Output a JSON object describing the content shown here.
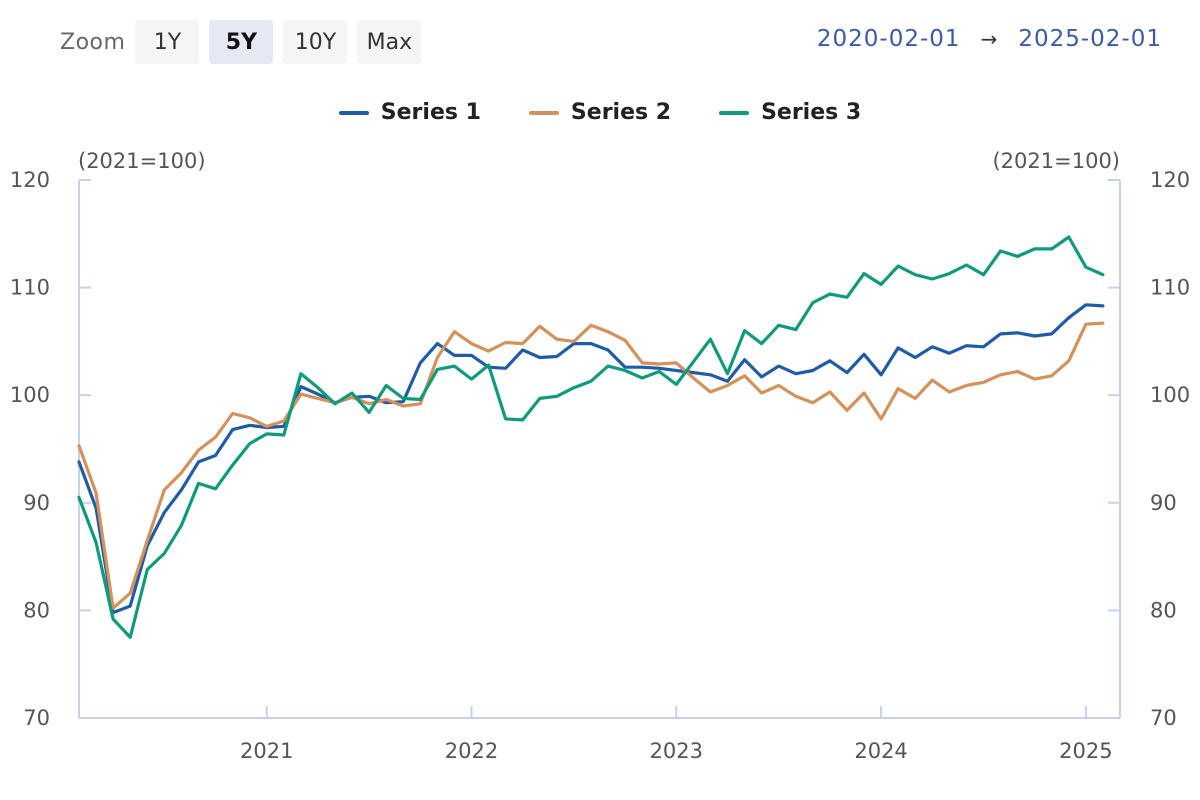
{
  "zoom": {
    "label": "Zoom",
    "buttons": [
      {
        "label": "1Y",
        "active": false
      },
      {
        "label": "5Y",
        "active": true
      },
      {
        "label": "10Y",
        "active": false
      },
      {
        "label": "Max",
        "active": false
      }
    ]
  },
  "range": {
    "from": "2020-02-01",
    "arrow": "→",
    "to": "2025-02-01"
  },
  "colors": {
    "series1": "#1f5ca8",
    "series2": "#d4915a",
    "series3": "#0f9a7c",
    "axis": "#c8d0ea"
  },
  "chart_data": {
    "type": "line",
    "x_start": "2020-02",
    "x_end": "2025-03",
    "frequency": "monthly",
    "y_unit_left": "(2021=100)",
    "y_unit_right": "(2021=100)",
    "ylim": [
      70,
      120
    ],
    "yticks": [
      "70",
      "80",
      "90",
      "100",
      "110",
      "120"
    ],
    "xticks": [
      "2021",
      "2022",
      "2023",
      "2024",
      "2025"
    ],
    "grid": false,
    "legend_position": "top-center",
    "series": [
      {
        "name": "Series 1",
        "color": "#1f5ca8",
        "values": [
          93.8,
          89.5,
          79.8,
          80.4,
          86,
          89.1,
          91.2,
          93.8,
          94.4,
          96.8,
          97.2,
          97,
          97.1,
          100.8,
          100.1,
          99.3,
          99.8,
          99.9,
          99.3,
          99.4,
          103,
          104.8,
          103.7,
          103.7,
          102.6,
          102.5,
          104.2,
          103.5,
          103.6,
          104.8,
          104.8,
          104.2,
          102.6,
          102.6,
          102.5,
          102.3,
          102.1,
          101.9,
          101.3,
          103.3,
          101.7,
          102.7,
          102,
          102.3,
          103.2,
          102.1,
          103.8,
          101.9,
          104.4,
          103.5,
          104.5,
          103.9,
          104.6,
          104.5,
          105.7,
          105.8,
          105.5,
          105.7,
          107.2,
          108.4,
          108.3
        ]
      },
      {
        "name": "Series 2",
        "color": "#d4915a",
        "values": [
          95.3,
          90.9,
          80.2,
          81.6,
          86.5,
          91.2,
          92.8,
          94.9,
          96.1,
          98.3,
          97.9,
          97.1,
          97.6,
          100.1,
          99.7,
          99.3,
          99.8,
          99.2,
          99.6,
          99,
          99.2,
          103.5,
          105.9,
          104.8,
          104.1,
          104.9,
          104.8,
          106.4,
          105.2,
          105,
          106.5,
          105.9,
          105.1,
          103,
          102.9,
          103,
          101.6,
          100.3,
          100.9,
          101.8,
          100.2,
          100.9,
          99.9,
          99.3,
          100.3,
          98.6,
          100.2,
          97.8,
          100.6,
          99.7,
          101.4,
          100.3,
          100.9,
          101.2,
          101.9,
          102.2,
          101.5,
          101.8,
          103.2,
          106.6,
          106.7
        ]
      },
      {
        "name": "Series 3",
        "color": "#0f9a7c",
        "values": [
          90.5,
          86.3,
          79.2,
          77.5,
          83.8,
          85.3,
          87.9,
          91.8,
          91.3,
          93.5,
          95.5,
          96.4,
          96.3,
          102,
          100.7,
          99.2,
          100.2,
          98.4,
          100.9,
          99.7,
          99.6,
          102.4,
          102.7,
          101.5,
          102.8,
          97.8,
          97.7,
          99.7,
          99.9,
          100.7,
          101.3,
          102.7,
          102.3,
          101.6,
          102.2,
          101,
          103.1,
          105.2,
          102,
          106,
          104.8,
          106.5,
          106.1,
          108.6,
          109.4,
          109.1,
          111.3,
          110.3,
          112,
          111.2,
          110.8,
          111.3,
          112.1,
          111.2,
          113.4,
          112.9,
          113.6,
          113.6,
          114.7,
          111.9,
          111.2
        ]
      }
    ]
  }
}
